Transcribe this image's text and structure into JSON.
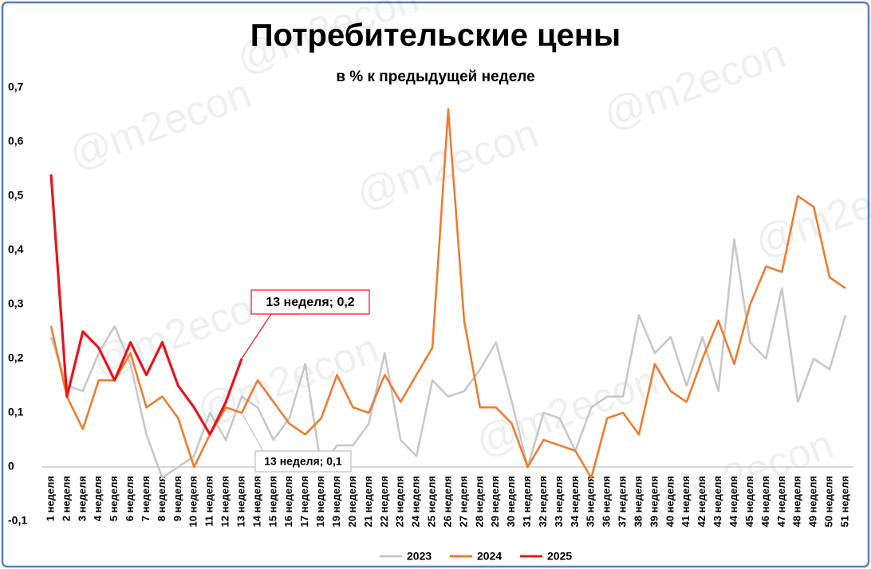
{
  "chart_data": {
    "type": "line",
    "title": "Потребительские цены",
    "subtitle": "в % к предыдущей неделе",
    "watermark": "@m2econ",
    "categories": [
      "1 неделя",
      "2 неделя",
      "3 неделя",
      "4 неделя",
      "5 неделя",
      "6 неделя",
      "7 неделя",
      "8 неделя",
      "9 неделя",
      "10 неделя",
      "11 неделя",
      "12 неделя",
      "13 неделя",
      "14 неделя",
      "15 неделя",
      "16 неделя",
      "17 неделя",
      "18 неделя",
      "19 неделя",
      "20 неделя",
      "21 неделя",
      "22 неделя",
      "23 неделя",
      "24 неделя",
      "25 неделя",
      "26 неделя",
      "27 неделя",
      "28 неделя",
      "29 неделя",
      "30 неделя",
      "31 неделя",
      "32 неделя",
      "33 неделя",
      "34 неделя",
      "35 неделя",
      "36 неделя",
      "37 неделя",
      "38 неделя",
      "39 неделя",
      "40 неделя",
      "41 неделя",
      "42 неделя",
      "43 неделя",
      "44 неделя",
      "45 неделя",
      "46 неделя",
      "47 неделя",
      "48 неделя",
      "49 неделя",
      "50 неделя",
      "51 неделя"
    ],
    "series": [
      {
        "name": "2023",
        "color": "#c8c8c8",
        "values": [
          0.24,
          0.15,
          0.14,
          0.21,
          0.26,
          0.19,
          0.06,
          -0.02,
          0.0,
          0.02,
          0.1,
          0.05,
          0.13,
          0.11,
          0.05,
          0.09,
          0.19,
          0.0,
          0.04,
          0.04,
          0.08,
          0.21,
          0.05,
          0.02,
          0.16,
          0.13,
          0.14,
          0.18,
          0.23,
          0.12,
          0.0,
          0.1,
          0.09,
          0.03,
          0.11,
          0.13,
          0.13,
          0.28,
          0.21,
          0.24,
          0.15,
          0.24,
          0.14,
          0.42,
          0.23,
          0.2,
          0.33,
          0.12,
          0.2,
          0.18,
          0.28
        ]
      },
      {
        "name": "2024",
        "color": "#ed7d31",
        "values": [
          0.26,
          0.13,
          0.07,
          0.16,
          0.16,
          0.21,
          0.11,
          0.13,
          0.09,
          0.0,
          0.06,
          0.11,
          0.1,
          0.16,
          0.12,
          0.08,
          0.06,
          0.09,
          0.17,
          0.11,
          0.1,
          0.17,
          0.12,
          0.17,
          0.22,
          0.66,
          0.27,
          0.11,
          0.11,
          0.08,
          0.0,
          0.05,
          0.04,
          0.03,
          -0.02,
          0.09,
          0.1,
          0.06,
          0.19,
          0.14,
          0.12,
          0.2,
          0.27,
          0.19,
          0.3,
          0.37,
          0.36,
          0.5,
          0.48,
          0.35,
          0.33
        ]
      },
      {
        "name": "2025",
        "color": "#e8141c",
        "values": [
          0.54,
          0.13,
          0.25,
          0.22,
          0.16,
          0.23,
          0.17,
          0.23,
          0.15,
          0.11,
          0.06,
          0.12,
          0.2,
          null,
          null,
          null,
          null,
          null,
          null,
          null,
          null,
          null,
          null,
          null,
          null,
          null,
          null,
          null,
          null,
          null,
          null,
          null,
          null,
          null,
          null,
          null,
          null,
          null,
          null,
          null,
          null,
          null,
          null,
          null,
          null,
          null,
          null,
          null,
          null,
          null,
          null
        ]
      }
    ],
    "annotations": [
      {
        "text": "13 неделя; 0,2",
        "series": 2,
        "index": 12
      },
      {
        "text": "13 неделя; 0,1",
        "series": 1,
        "index": 12
      }
    ],
    "ylim": [
      -0.1,
      0.7
    ],
    "yticks": [
      {
        "value": -0.1,
        "label": "-0,1"
      },
      0,
      {
        "value": 0.1,
        "label": "0,1"
      },
      {
        "value": 0.2,
        "label": "0,2"
      },
      {
        "value": 0.3,
        "label": "0,3"
      },
      {
        "value": 0.4,
        "label": "0,4"
      },
      {
        "value": 0.5,
        "label": "0,5"
      },
      {
        "value": 0.6,
        "label": "0,6"
      },
      {
        "value": 0.7,
        "label": "0,7"
      }
    ],
    "grid": false,
    "legend": "bottom"
  }
}
